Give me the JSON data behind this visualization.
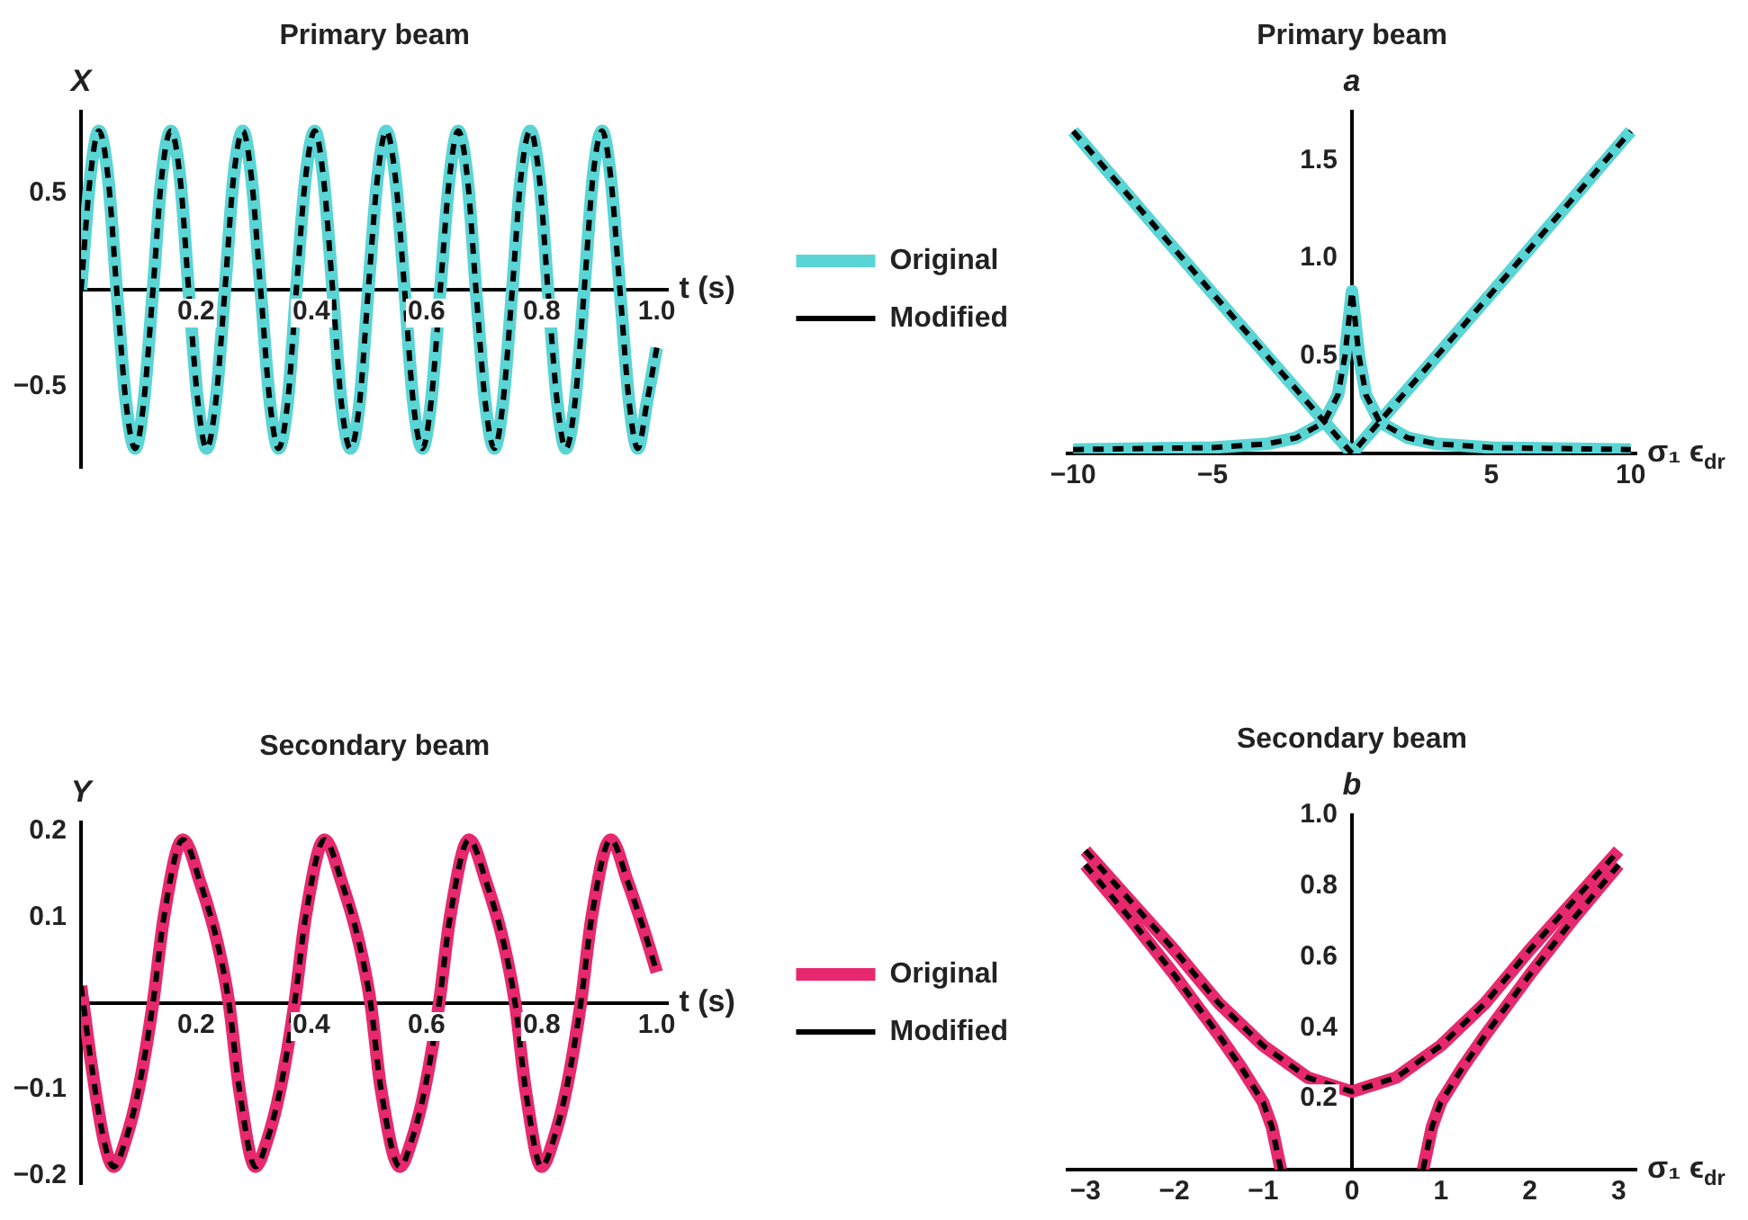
{
  "chart_data": [
    {
      "type": "line",
      "title": "Primary beam",
      "xlabel": "t (s)",
      "ylabel": "X",
      "legend": "right",
      "marker": "none",
      "grid": false,
      "x": [
        0,
        0.016,
        0.031,
        0.047,
        0.062,
        0.078,
        0.094,
        0.109,
        0.125,
        0.14,
        0.156,
        0.172,
        0.187,
        0.203,
        0.218,
        0.234,
        0.25,
        0.265,
        0.281,
        0.296,
        0.312,
        0.328,
        0.343,
        0.359,
        0.374,
        0.39,
        0.406,
        0.421,
        0.437,
        0.452,
        0.468,
        0.484,
        0.499,
        0.515,
        0.53,
        0.546,
        0.562,
        0.577,
        0.593,
        0.608,
        0.624,
        0.64,
        0.655,
        0.671,
        0.686,
        0.702,
        0.718,
        0.733,
        0.749,
        0.764,
        0.78,
        0.796,
        0.811,
        0.827,
        0.842,
        0.858,
        0.874,
        0.889,
        0.905,
        0.92,
        0.936,
        0.952,
        0.967,
        0.983,
        1.0
      ],
      "series": [
        {
          "name": "Original",
          "color": "#5ad5d5",
          "line_style": "solid",
          "values": [
            0,
            0.58,
            0.82,
            0.58,
            0,
            -0.58,
            -0.82,
            -0.58,
            0,
            0.58,
            0.82,
            0.58,
            0,
            -0.58,
            -0.82,
            -0.58,
            0,
            0.58,
            0.82,
            0.58,
            0,
            -0.58,
            -0.82,
            -0.58,
            0,
            0.58,
            0.82,
            0.58,
            0,
            -0.58,
            -0.82,
            -0.58,
            0,
            0.58,
            0.82,
            0.58,
            0,
            -0.58,
            -0.82,
            -0.58,
            0,
            0.58,
            0.82,
            0.58,
            0,
            -0.58,
            -0.82,
            -0.58,
            0,
            0.58,
            0.82,
            0.58,
            0,
            -0.58,
            -0.82,
            -0.58,
            0,
            0.58,
            0.82,
            0.58,
            0,
            -0.58,
            -0.82,
            -0.58,
            -0.3
          ]
        },
        {
          "name": "Modified",
          "color": "#000000",
          "line_style": "dashed",
          "values": [
            0,
            0.58,
            0.82,
            0.58,
            0,
            -0.58,
            -0.82,
            -0.58,
            0,
            0.58,
            0.82,
            0.58,
            0,
            -0.58,
            -0.82,
            -0.58,
            0,
            0.58,
            0.82,
            0.58,
            0,
            -0.58,
            -0.82,
            -0.58,
            0,
            0.58,
            0.82,
            0.58,
            0,
            -0.58,
            -0.82,
            -0.58,
            0,
            0.58,
            0.82,
            0.58,
            0,
            -0.58,
            -0.82,
            -0.58,
            0,
            0.58,
            0.82,
            0.58,
            0,
            -0.58,
            -0.82,
            -0.58,
            0,
            0.58,
            0.82,
            0.58,
            0,
            -0.58,
            -0.82,
            -0.58,
            0,
            0.58,
            0.82,
            0.58,
            0,
            -0.58,
            -0.82,
            -0.58,
            -0.3
          ]
        }
      ],
      "xlim": [
        0,
        1.02
      ],
      "xticks": [
        0.2,
        0.4,
        0.6,
        0.8,
        {
          "value": 1,
          "label": "1.0"
        }
      ],
      "ylim": [
        -0.92,
        0.92
      ],
      "yticks": [
        {
          "value": -0.5,
          "label": "−0.5"
        },
        0.5
      ]
    },
    {
      "type": "line",
      "title": "Primary beam",
      "xlabel": "σ₁ ϵ$_{dr}$",
      "ylabel": "a",
      "marker": "none",
      "grid": false,
      "x": [
        -10,
        -5,
        0,
        5,
        10,
        0,
        -10,
        -5,
        -3,
        -2,
        -1,
        -0.5,
        -0.25,
        0,
        0.25,
        0.5,
        1,
        2,
        3,
        5,
        10
      ],
      "series": [
        {
          "color": "#5ad5d5",
          "line_style": "solid",
          "values": [
            1.65,
            0.82,
            0,
            0.82,
            1.65,
            null,
            0.02,
            0.03,
            0.05,
            0.08,
            0.16,
            0.3,
            0.5,
            0.83,
            0.5,
            0.3,
            0.16,
            0.08,
            0.05,
            0.03,
            0.02
          ]
        },
        {
          "color": "#000000",
          "line_style": "dashed",
          "values": [
            1.65,
            0.82,
            0,
            0.82,
            1.65,
            null,
            0.02,
            0.03,
            0.05,
            0.08,
            0.16,
            0.3,
            0.5,
            0.83,
            0.5,
            0.3,
            0.16,
            0.08,
            0.05,
            0.03,
            0.02
          ]
        }
      ],
      "xlim": [
        -10.2,
        10.2
      ],
      "xticks": [
        {
          "value": -10,
          "label": "−10"
        },
        {
          "value": -5,
          "label": "−5"
        },
        5,
        10
      ],
      "ylim": [
        0,
        1.75
      ],
      "yticks": [
        0.5,
        {
          "value": 1,
          "label": "1.0"
        },
        1.5
      ]
    },
    {
      "type": "line",
      "title": "Secondary beam",
      "xlabel": "t (s)",
      "ylabel": "Y",
      "legend": "right",
      "marker": "none",
      "grid": false,
      "x": [
        0,
        0.02,
        0.04,
        0.057,
        0.077,
        0.1,
        0.125,
        0.144,
        0.177,
        0.207,
        0.237,
        0.257,
        0.275,
        0.303,
        0.323,
        0.346,
        0.371,
        0.39,
        0.423,
        0.453,
        0.483,
        0.503,
        0.521,
        0.554,
        0.574,
        0.597,
        0.622,
        0.641,
        0.674,
        0.704,
        0.734,
        0.754,
        0.772,
        0.8,
        0.82,
        0.843,
        0.868,
        0.887,
        0.92,
        0.95,
        0.98,
        1.0
      ],
      "series": [
        {
          "name": "Original",
          "color": "#e8286e",
          "line_style": "solid",
          "values": [
            0.02,
            -0.08,
            -0.16,
            -0.19,
            -0.16,
            -0.1,
            0,
            0.1,
            0.19,
            0.14,
            0.07,
            0,
            -0.1,
            -0.19,
            -0.16,
            -0.1,
            0,
            0.1,
            0.19,
            0.14,
            0.07,
            0,
            -0.1,
            -0.19,
            -0.16,
            -0.1,
            0,
            0.1,
            0.19,
            0.14,
            0.07,
            0,
            -0.1,
            -0.19,
            -0.16,
            -0.1,
            0,
            0.1,
            0.19,
            0.14,
            0.08,
            0.036
          ]
        },
        {
          "name": "Modified",
          "color": "#000000",
          "line_style": "dashed",
          "values": [
            0.02,
            -0.08,
            -0.16,
            -0.19,
            -0.16,
            -0.1,
            0,
            0.1,
            0.19,
            0.14,
            0.07,
            0,
            -0.1,
            -0.19,
            -0.16,
            -0.1,
            0,
            0.1,
            0.19,
            0.14,
            0.07,
            0,
            -0.1,
            -0.19,
            -0.16,
            -0.1,
            0,
            0.1,
            0.19,
            0.14,
            0.07,
            0,
            -0.1,
            -0.19,
            -0.16,
            -0.1,
            0,
            0.1,
            0.19,
            0.14,
            0.08,
            0.036
          ]
        }
      ],
      "xlim": [
        0,
        1.02
      ],
      "xticks": [
        0.2,
        0.4,
        0.6,
        0.8,
        {
          "value": 1,
          "label": "1.0"
        }
      ],
      "ylim": [
        -0.21,
        0.21
      ],
      "yticks": [
        {
          "value": -0.2,
          "label": "−0.2"
        },
        {
          "value": -0.1,
          "label": "−0.1"
        },
        0.1,
        0.2
      ]
    },
    {
      "type": "line",
      "title": "Secondary beam",
      "xlabel": "σ₁ ϵ$_{dr}$",
      "ylabel": "b",
      "marker": "none",
      "grid": false,
      "x": [
        -3,
        -2.5,
        -2,
        -1.5,
        -1,
        -0.5,
        0,
        0.5,
        1,
        1.5,
        2,
        2.5,
        3,
        0,
        -0.8,
        -0.85,
        -0.9,
        -1,
        -1.25,
        -1.5,
        -2,
        -2.5,
        -3,
        0,
        0.8,
        0.85,
        0.9,
        1,
        1.25,
        1.5,
        2,
        2.5,
        3
      ],
      "series": [
        {
          "color": "#e8286e",
          "line_style": "solid",
          "values": [
            0.9,
            0.76,
            0.62,
            0.47,
            0.35,
            0.26,
            0.22,
            0.26,
            0.35,
            0.47,
            0.62,
            0.76,
            0.9,
            null,
            0,
            0.06,
            0.12,
            0.19,
            0.29,
            0.38,
            0.55,
            0.71,
            0.86,
            null,
            0,
            0.06,
            0.12,
            0.19,
            0.29,
            0.38,
            0.55,
            0.71,
            0.86
          ]
        },
        {
          "color": "#000000",
          "line_style": "dashed",
          "values": [
            0.9,
            0.76,
            0.62,
            0.47,
            0.35,
            0.26,
            0.22,
            0.26,
            0.35,
            0.47,
            0.62,
            0.76,
            0.9,
            null,
            0,
            0.06,
            0.12,
            0.19,
            0.29,
            0.38,
            0.55,
            0.71,
            0.86,
            null,
            0,
            0.06,
            0.12,
            0.19,
            0.29,
            0.38,
            0.55,
            0.71,
            0.86
          ]
        }
      ],
      "xlim": [
        -3.2,
        3.2
      ],
      "xticks": [
        {
          "value": -3,
          "label": "−3"
        },
        {
          "value": -2,
          "label": "−2"
        },
        {
          "value": -1,
          "label": "−1"
        },
        0,
        1,
        2,
        3
      ],
      "ylim": [
        0,
        1
      ],
      "yticks": [
        0.2,
        0.4,
        0.6,
        0.8,
        {
          "value": 1,
          "label": "1.0"
        }
      ]
    }
  ]
}
